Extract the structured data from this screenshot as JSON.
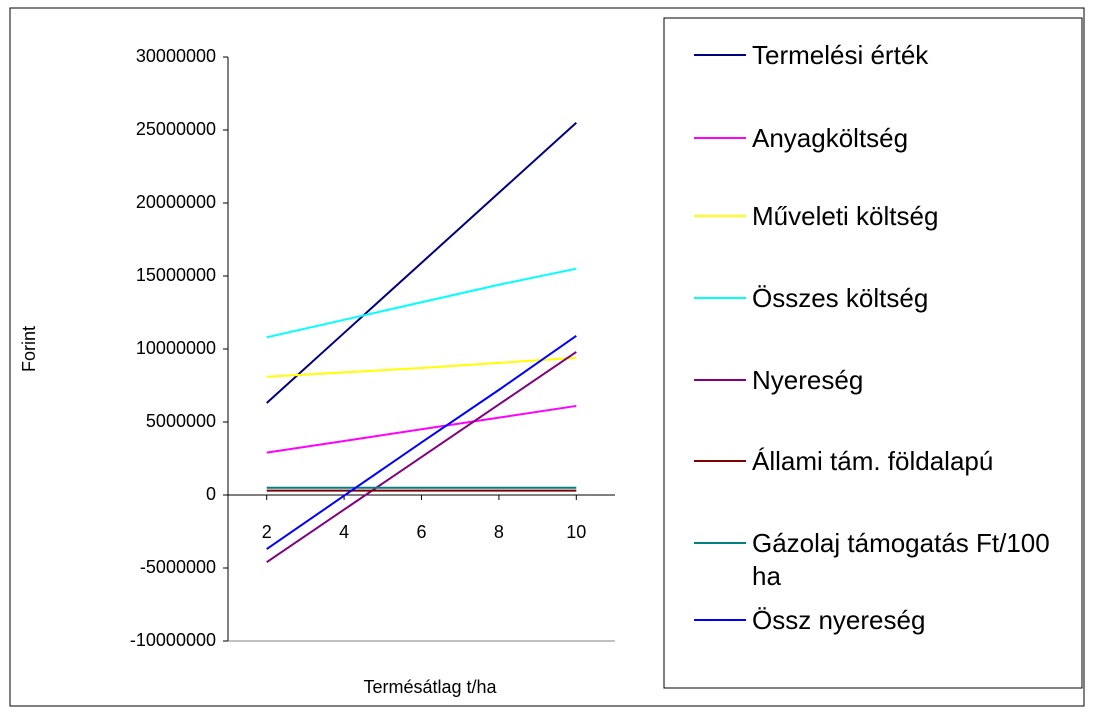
{
  "chart_data": {
    "type": "line",
    "x_label": "Termésátlag t/ha",
    "y_label": "Forint",
    "x": [
      2,
      4,
      6,
      8,
      10
    ],
    "xlim": [
      1,
      11
    ],
    "xticks": [
      2,
      4,
      6,
      8,
      10
    ],
    "ylim": [
      -10000000,
      30000000
    ],
    "yticks": [
      -10000000,
      -5000000,
      0,
      5000000,
      10000000,
      15000000,
      20000000,
      25000000,
      30000000
    ],
    "series": [
      {
        "name": "Termelési érték",
        "color": "#000080",
        "values": [
          6300000,
          11100000,
          15900000,
          20700000,
          25500000
        ]
      },
      {
        "name": "Anyagköltség",
        "color": "#ff00ff",
        "values": [
          2900000,
          3700000,
          4500000,
          5300000,
          6100000
        ]
      },
      {
        "name": "Műveleti költség",
        "color": "#ffff00",
        "values": [
          8100000,
          8400000,
          8700000,
          9050000,
          9400000
        ]
      },
      {
        "name": "Összes költség",
        "color": "#00ffff",
        "values": [
          10800000,
          12000000,
          13200000,
          14400000,
          15500000
        ]
      },
      {
        "name": "Nyereség",
        "color": "#800080",
        "values": [
          -4600000,
          -1000000,
          2600000,
          6200000,
          9800000
        ]
      },
      {
        "name": "Állami tám. földalapú",
        "color": "#800000",
        "values": [
          300000,
          300000,
          300000,
          300000,
          300000
        ]
      },
      {
        "name": "Gázolaj támogatás Ft/100 ha",
        "color": "#008080",
        "values": [
          500000,
          500000,
          500000,
          500000,
          500000
        ]
      },
      {
        "name": "Össz nyereség",
        "color": "#0000ff",
        "values": [
          -3700000,
          -50000,
          3600000,
          7200000,
          10900000
        ]
      }
    ]
  }
}
